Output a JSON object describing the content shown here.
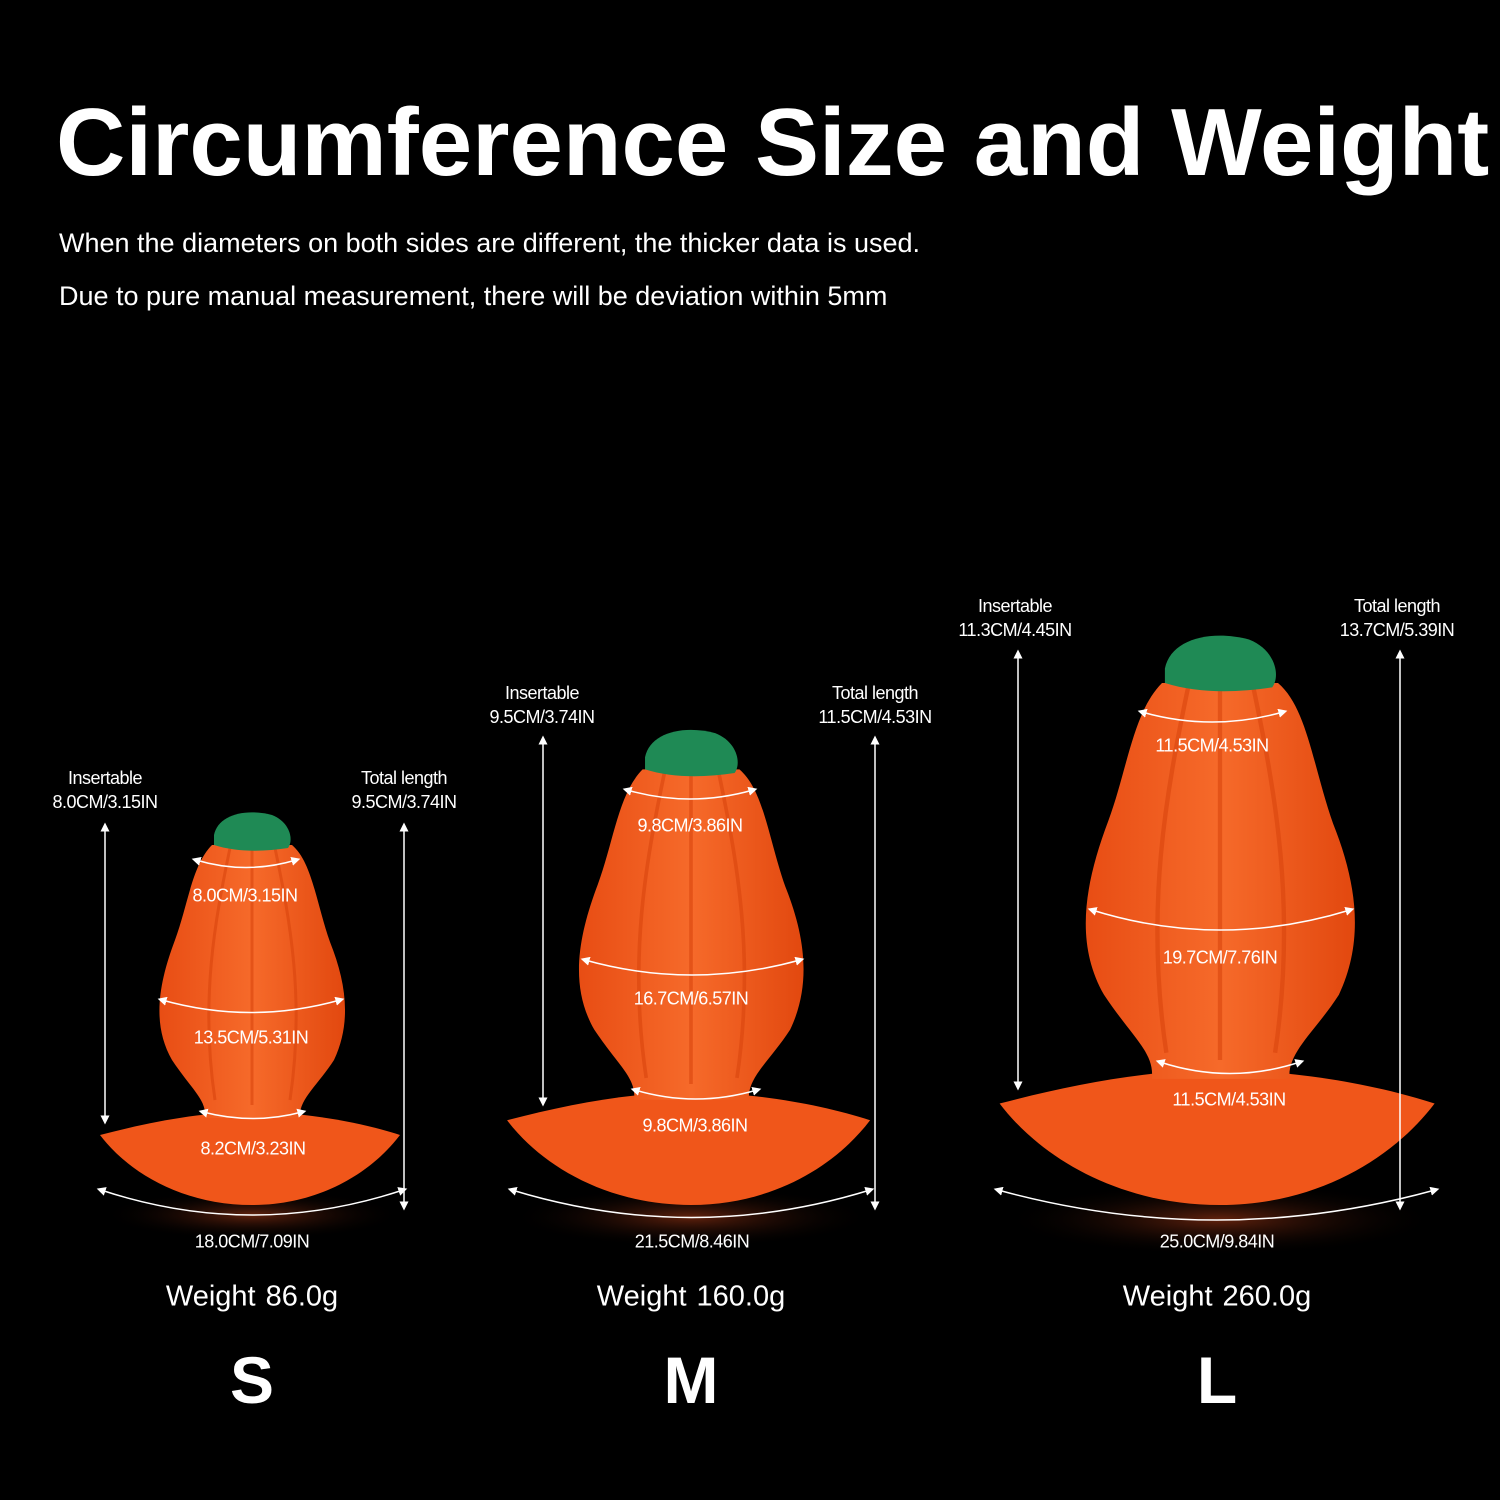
{
  "title": "Circumference Size and Weight",
  "notes": [
    "When the diameters on both sides are different, the thicker data is used.",
    "Due to pure manual measurement, there will be deviation within 5mm"
  ],
  "colors": {
    "background": "#000000",
    "product": "#f25a1c",
    "cap": "#1f8a55",
    "text": "#ffffff"
  },
  "sizes": [
    {
      "name": "S",
      "weight_label": "Weight",
      "weight": "86.0g",
      "insertable_label": "Insertable",
      "insertable": "8.0CM/3.15IN",
      "total_label": "Total length",
      "total": "9.5CM/3.74IN",
      "circumference_top": "8.0CM/3.15IN",
      "circumference_middle": "13.5CM/5.31IN",
      "circumference_neck": "8.2CM/3.23IN",
      "circumference_base": "18.0CM/7.09IN"
    },
    {
      "name": "M",
      "weight_label": "Weight",
      "weight": "160.0g",
      "insertable_label": "Insertable",
      "insertable": "9.5CM/3.74IN",
      "total_label": "Total length",
      "total": "11.5CM/4.53IN",
      "circumference_top": "9.8CM/3.86IN",
      "circumference_middle": "16.7CM/6.57IN",
      "circumference_neck": "9.8CM/3.86IN",
      "circumference_base": "21.5CM/8.46IN"
    },
    {
      "name": "L",
      "weight_label": "Weight",
      "weight": "260.0g",
      "insertable_label": "Insertable",
      "insertable": "11.3CM/4.45IN",
      "total_label": "Total length",
      "total": "13.7CM/5.39IN",
      "circumference_top": "11.5CM/4.53IN",
      "circumference_middle": "19.7CM/7.76IN",
      "circumference_neck": "11.5CM/4.53IN",
      "circumference_base": "25.0CM/9.84IN"
    }
  ]
}
